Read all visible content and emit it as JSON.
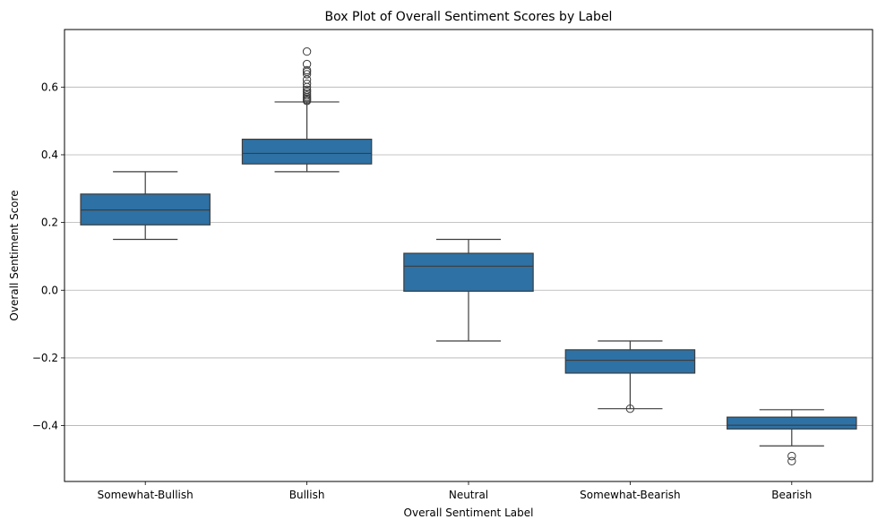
{
  "chart_data": {
    "type": "box",
    "title": "Box Plot of Overall Sentiment Scores by Label",
    "xlabel": "Overall Sentiment Label",
    "ylabel": "Overall Sentiment Score",
    "ylim": [
      -0.565,
      0.77
    ],
    "yticks": [
      -0.4,
      -0.2,
      0.0,
      0.2,
      0.4,
      0.6
    ],
    "ytick_labels": [
      "−0.4",
      "−0.2",
      "0.0",
      "0.2",
      "0.4",
      "0.6"
    ],
    "grid": "horizontal",
    "box_color": "#2e71a4",
    "categories": [
      "Somewhat-Bullish",
      "Bullish",
      "Neutral",
      "Somewhat-Bearish",
      "Bearish"
    ],
    "boxes": [
      {
        "label": "Somewhat-Bullish",
        "whisker_low": 0.15,
        "q1": 0.193,
        "median": 0.237,
        "q3": 0.284,
        "whisker_high": 0.35,
        "outliers": []
      },
      {
        "label": "Bullish",
        "whisker_low": 0.35,
        "q1": 0.373,
        "median": 0.404,
        "q3": 0.446,
        "whisker_high": 0.556,
        "outliers": [
          0.559,
          0.562,
          0.566,
          0.57,
          0.575,
          0.58,
          0.586,
          0.592,
          0.6,
          0.61,
          0.622,
          0.638,
          0.645,
          0.65,
          0.668,
          0.705
        ]
      },
      {
        "label": "Neutral",
        "whisker_low": -0.15,
        "q1": -0.003,
        "median": 0.071,
        "q3": 0.109,
        "whisker_high": 0.15,
        "outliers": []
      },
      {
        "label": "Somewhat-Bearish",
        "whisker_low": -0.35,
        "q1": -0.245,
        "median": -0.207,
        "q3": -0.176,
        "whisker_high": -0.15,
        "outliers": [
          -0.35
        ]
      },
      {
        "label": "Bearish",
        "whisker_low": -0.46,
        "q1": -0.41,
        "median": -0.399,
        "q3": -0.375,
        "whisker_high": -0.353,
        "outliers": [
          -0.49,
          -0.505
        ]
      }
    ]
  }
}
